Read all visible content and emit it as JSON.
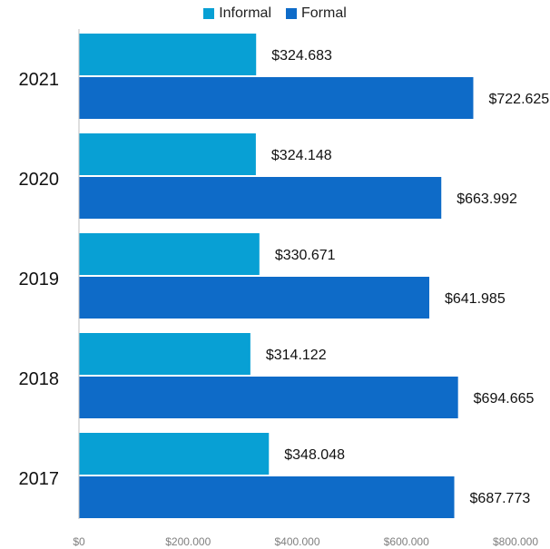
{
  "chart_data": {
    "type": "bar",
    "orientation": "horizontal",
    "categories": [
      "2021",
      "2020",
      "2019",
      "2018",
      "2017"
    ],
    "series": [
      {
        "name": "Informal",
        "color": "#08A0D4",
        "values": [
          324683,
          324148,
          330671,
          314122,
          348048
        ],
        "labels": [
          "$324.683",
          "$324.148",
          "$330.671",
          "$314.122",
          "$348.048"
        ]
      },
      {
        "name": "Formal",
        "color": "#0E6BC8",
        "values": [
          722625,
          663992,
          641985,
          694665,
          687773
        ],
        "labels": [
          "$722.625",
          "$663.992",
          "$641.985",
          "$694.665",
          "$687.773"
        ]
      }
    ],
    "xlim": [
      0,
      800000
    ],
    "xticks": [
      0,
      200000,
      400000,
      600000,
      800000
    ],
    "xtick_labels": [
      "$0",
      "$200.000",
      "$400.000",
      "$600.000",
      "$800.000"
    ],
    "legend_position": "top-center",
    "grid": false,
    "title": "",
    "xlabel": "",
    "ylabel": ""
  }
}
